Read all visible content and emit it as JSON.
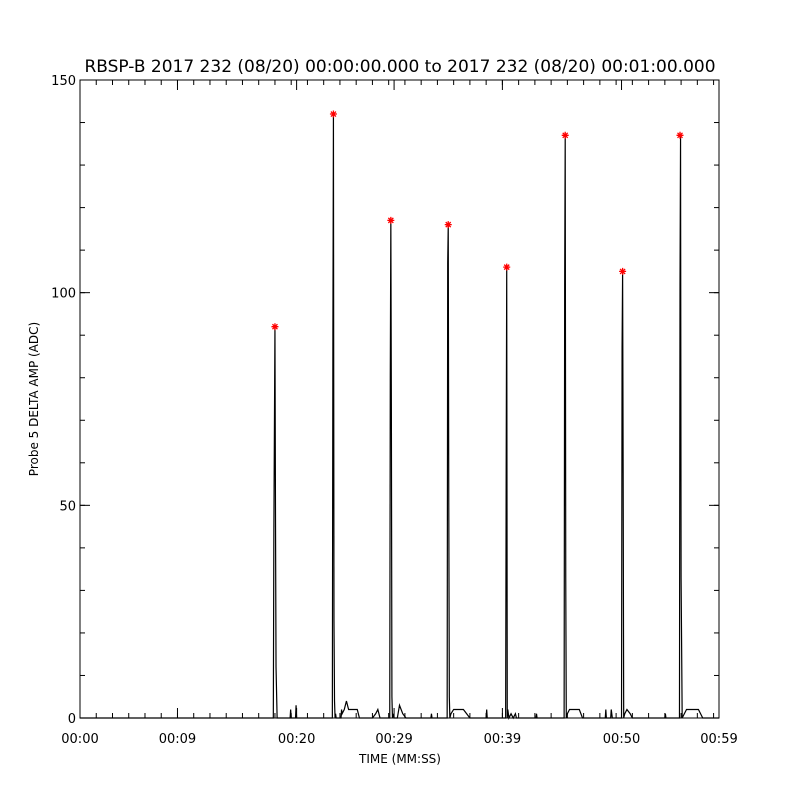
{
  "chart_data": {
    "type": "line",
    "title": "RBSP-B 2017 232 (08/20) 00:00:00.000 to 2017 232 (08/20) 00:01:00.000",
    "xlabel": "TIME (MM:SS)",
    "ylabel": "Probe 5 DELTA AMP (ADC)",
    "x_unit": "seconds",
    "xlim": [
      0,
      59
    ],
    "ylim": [
      0,
      150
    ],
    "x_ticks": [
      {
        "value": 0,
        "label": "00:00"
      },
      {
        "value": 9,
        "label": "00:09"
      },
      {
        "value": 20,
        "label": "00:20"
      },
      {
        "value": 29,
        "label": "00:29"
      },
      {
        "value": 39,
        "label": "00:39"
      },
      {
        "value": 50,
        "label": "00:50"
      },
      {
        "value": 59,
        "label": "00:59"
      }
    ],
    "y_ticks": [
      {
        "value": 0,
        "label": "0"
      },
      {
        "value": 50,
        "label": "50"
      },
      {
        "value": 100,
        "label": "100"
      },
      {
        "value": 150,
        "label": "150"
      }
    ],
    "y_minor_step": 10,
    "x_minor_step": 1.5,
    "grid": false,
    "series": [
      {
        "color": "#000000",
        "x": [
          0,
          17.85,
          17.9,
          18.0,
          18.05,
          18.1,
          18.2,
          18.3,
          18.5,
          19.4,
          19.45,
          19.5,
          19.55,
          19.9,
          19.95,
          20.0,
          20.05,
          20.2,
          23.3,
          23.35,
          23.4,
          23.45,
          23.5,
          23.55,
          23.6,
          23.65,
          23.7,
          23.8,
          24.1,
          24.15,
          24.2,
          24.4,
          24.6,
          24.8,
          25.0,
          25.2,
          25.4,
          25.6,
          25.8,
          26.0,
          26.2,
          26.5,
          27.0,
          27.3,
          27.5,
          27.7,
          27.9,
          28.1,
          28.6,
          28.65,
          28.7,
          28.75,
          28.8,
          28.85,
          28.9,
          29.0,
          29.3,
          29.5,
          29.8,
          30.1,
          30.4,
          31.0,
          32.4,
          32.45,
          32.5,
          33.9,
          33.95,
          34.0,
          34.05,
          34.1,
          34.15,
          34.25,
          34.5,
          34.8,
          35.1,
          35.4,
          35.7,
          36.0,
          36.4,
          37.0,
          37.5,
          37.55,
          37.6,
          37.7,
          39.3,
          39.35,
          39.4,
          39.45,
          39.5,
          39.6,
          39.8,
          40.0,
          40.2,
          40.3,
          42.1,
          42.15,
          42.2,
          42.3,
          44.7,
          44.75,
          44.8,
          44.85,
          44.9,
          45.0,
          45.2,
          45.5,
          45.8,
          46.1,
          46.4,
          47.0,
          47.5,
          47.8,
          48.5,
          48.55,
          48.6,
          48.65,
          48.7,
          49.0,
          49.05,
          49.1,
          49.15,
          49.2,
          50.0,
          50.05,
          50.1,
          50.15,
          50.2,
          50.3,
          50.5,
          50.8,
          51.0,
          51.3,
          51.6,
          52.0,
          54.0,
          54.05,
          54.1,
          55.3,
          55.35,
          55.4,
          55.45,
          55.5,
          55.6,
          55.8,
          56.0,
          56.2,
          56.5,
          56.8,
          57.1,
          57.5,
          59
        ],
        "y": [
          0,
          0,
          44,
          92,
          48,
          12,
          0,
          0,
          0,
          0,
          2,
          0,
          0,
          0,
          3,
          0,
          0,
          0,
          0,
          90,
          142,
          23,
          4,
          0,
          1,
          0,
          0,
          0,
          0,
          2,
          1,
          2,
          4,
          2,
          2,
          2,
          2,
          2,
          0,
          0,
          0,
          0,
          0,
          1,
          2,
          0,
          0,
          0,
          0,
          81,
          117,
          72,
          5,
          0,
          1,
          0,
          0,
          3,
          1,
          0,
          0,
          0,
          0,
          1,
          0,
          0,
          107,
          116,
          50,
          5,
          0,
          1,
          2,
          2,
          2,
          2,
          1,
          0,
          0,
          0,
          0,
          2,
          0,
          0,
          0,
          59,
          106,
          0,
          2,
          0,
          1,
          0,
          1,
          0,
          0,
          1,
          0,
          0,
          0,
          102,
          137,
          33,
          0,
          1,
          2,
          2,
          2,
          2,
          0,
          0,
          0,
          0,
          0,
          2,
          0,
          0,
          0,
          0,
          2,
          1,
          0,
          0,
          0,
          87,
          105,
          58,
          0,
          1,
          2,
          1,
          0,
          0,
          0,
          0,
          0,
          1,
          0,
          0,
          0,
          102,
          137,
          33,
          0,
          1,
          2,
          2,
          2,
          2,
          2,
          0,
          0
        ]
      }
    ],
    "peaks": {
      "marker": "asterisk",
      "color": "#ff0000",
      "x": [
        18.0,
        23.4,
        28.7,
        34.0,
        39.4,
        44.8,
        50.1,
        55.4
      ],
      "y": [
        92,
        142,
        117,
        116,
        106,
        137,
        105,
        137
      ]
    }
  }
}
